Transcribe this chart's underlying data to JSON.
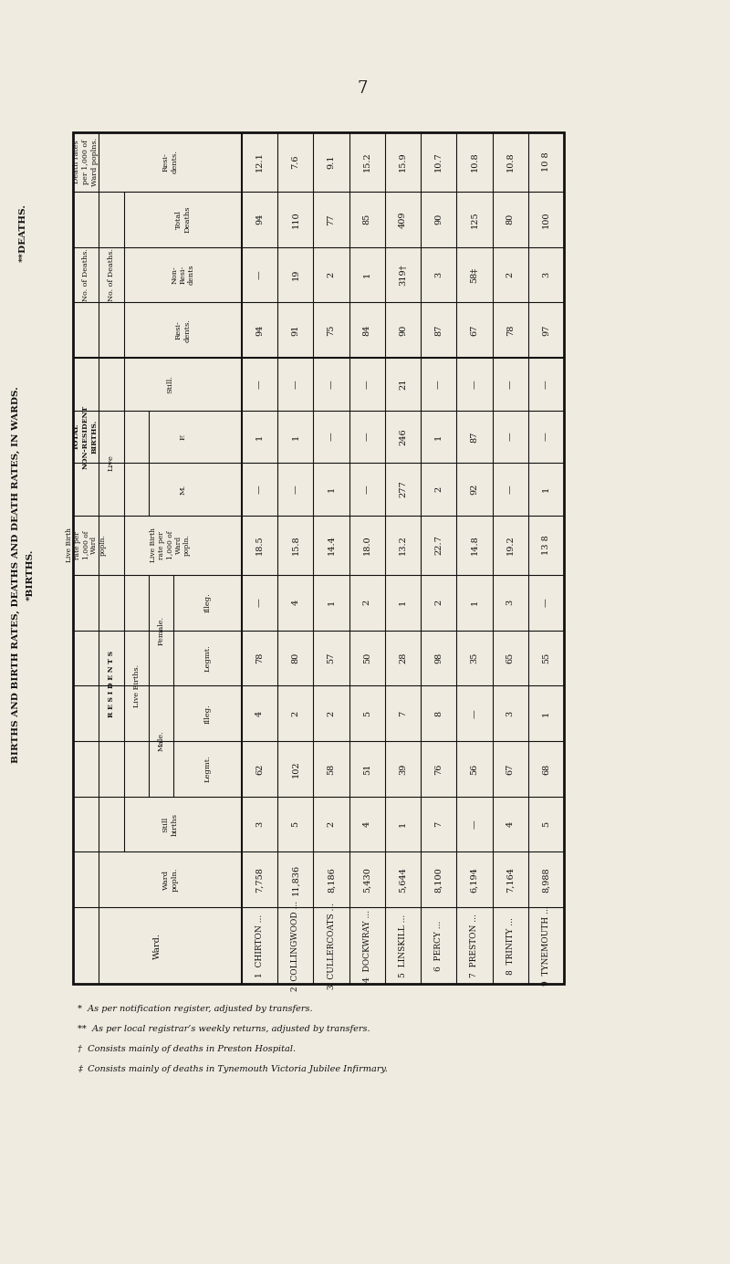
{
  "title_main": "BIRTHS AND BIRTH RATES, DEATHS AND DEATH RATES, IN WARDS.",
  "subtitle_births": "*BIRTHS.",
  "subtitle_deaths": "**DEATHS.",
  "page_number": "7",
  "wards": [
    "CHIRTON",
    "COLLINGWOOD",
    "CULLERCOATS",
    "DOCKWRAY",
    "LINSKILL",
    "PERCY",
    "PRESTON",
    "TRINITY",
    "TYNEMOUTH"
  ],
  "ward_nums": [
    "1",
    "2",
    "3",
    "4",
    "5",
    "6",
    "7",
    "8",
    "9"
  ],
  "ward_popln": [
    "7,758",
    "11,836",
    "8,186",
    "5,430",
    "5,644",
    "8,100",
    "6,194",
    "7,164",
    "8,988"
  ],
  "still_births": [
    "3",
    "5",
    "2",
    "4",
    "1",
    "7",
    "—",
    "4",
    "5"
  ],
  "male_legmt": [
    "62",
    "102",
    "58",
    "51",
    "39",
    "76",
    "56",
    "67",
    "68"
  ],
  "male_illeg": [
    "4",
    "2",
    "2",
    "5",
    "7",
    "8",
    "—",
    "3",
    "1"
  ],
  "female_legmt": [
    "78",
    "80",
    "57",
    "50",
    "28",
    "98",
    "35",
    "65",
    "55"
  ],
  "female_illeg": [
    "—",
    "4",
    "1",
    "2",
    "1",
    "2",
    "1",
    "3",
    "—"
  ],
  "live_birth_rate": [
    "18.5",
    "15.8",
    "14.4",
    "18.0",
    "13.2",
    "22.7",
    "14.8",
    "19.2",
    "13 8"
  ],
  "nonres_live_M": [
    "—",
    "—",
    "1",
    "—",
    "277",
    "2",
    "92",
    "—",
    "1"
  ],
  "nonres_live_F": [
    "1",
    "1",
    "—",
    "—",
    "246",
    "1",
    "87",
    "—",
    "—"
  ],
  "nonres_still": [
    "—",
    "—",
    "—",
    "—",
    "21",
    "—",
    "—",
    "—",
    "—"
  ],
  "deaths_resi": [
    "94",
    "91",
    "75",
    "84",
    "90",
    "87",
    "67",
    "78",
    "97"
  ],
  "deaths_nonresi": [
    "—",
    "19",
    "2",
    "1",
    "319†",
    "3",
    "58‡",
    "2",
    "3"
  ],
  "deaths_total": [
    "94",
    "110",
    "77",
    "85",
    "409",
    "90",
    "125",
    "80",
    "100"
  ],
  "death_rate_resi": [
    "12.1",
    "7.6",
    "9.1",
    "15.2",
    "15.9",
    "10.7",
    "10.8",
    "10.8",
    "10 8"
  ],
  "footnotes": [
    "*  As per notification register, adjusted by transfers.",
    "**  As per local registrar’s weekly returns, adjusted by transfers.",
    "†  Consists mainly of deaths in Preston Hospital.",
    "‡  Consists mainly of deaths in Tynemouth Victoria Jubilee Infirmary."
  ],
  "bg_color": "#f0ebe0",
  "line_color": "#111111",
  "text_color": "#111111"
}
